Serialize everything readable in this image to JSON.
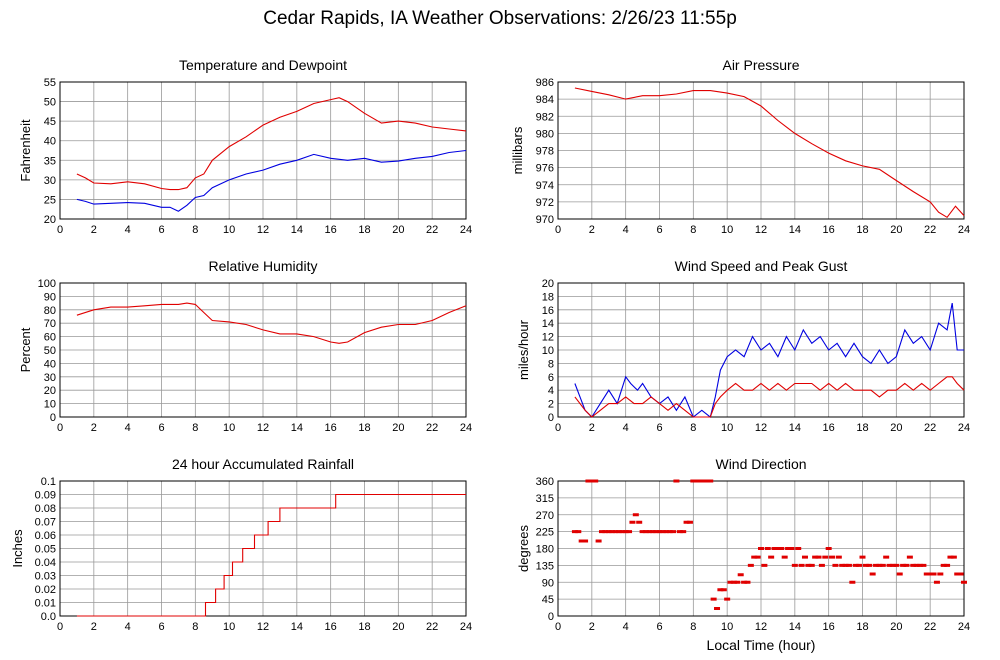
{
  "page": {
    "title": "Cedar Rapids, IA Weather Observations: 2/26/23 11:55p",
    "xlabel": "Local Time (hour)"
  },
  "colors": {
    "red": "#e00000",
    "blue": "#0000e0",
    "grid": "#999999"
  },
  "chart_data": [
    {
      "id": "temp",
      "type": "line",
      "title": "Temperature and Dewpoint",
      "ylabel": "Fahrenheit",
      "xlim": [
        0,
        24
      ],
      "ylim": [
        20,
        55
      ],
      "xticks": [
        2,
        4,
        6,
        8,
        10,
        12,
        14,
        16,
        18,
        20,
        22,
        24
      ],
      "yticks": [
        20,
        25,
        30,
        35,
        40,
        45,
        50,
        55
      ],
      "grid": true,
      "series": [
        {
          "color": "red",
          "x": [
            1,
            1.5,
            2,
            3,
            4,
            5,
            6,
            6.5,
            7,
            7.5,
            8,
            8.5,
            9,
            10,
            11,
            12,
            13,
            14,
            15,
            16,
            16.5,
            17,
            18,
            19,
            20,
            21,
            22,
            23,
            24
          ],
          "y": [
            31.5,
            30.5,
            29.2,
            29.0,
            29.5,
            29.0,
            27.8,
            27.5,
            27.5,
            28.0,
            30.5,
            31.5,
            35.0,
            38.5,
            41.0,
            44.0,
            46.0,
            47.5,
            49.5,
            50.5,
            51.0,
            50.0,
            47.0,
            44.5,
            45.0,
            44.5,
            43.5,
            43.0,
            42.5
          ]
        },
        {
          "color": "blue",
          "x": [
            1,
            1.5,
            2,
            3,
            4,
            5,
            6,
            6.5,
            7,
            7.5,
            8,
            8.5,
            9,
            10,
            11,
            12,
            13,
            14,
            15,
            16,
            17,
            18,
            19,
            20,
            21,
            22,
            23,
            24
          ],
          "y": [
            25.0,
            24.5,
            23.8,
            24.0,
            24.2,
            24.0,
            23.0,
            23.0,
            22.0,
            23.5,
            25.5,
            26.0,
            28.0,
            30.0,
            31.5,
            32.5,
            34.0,
            35.0,
            36.5,
            35.5,
            35.0,
            35.5,
            34.5,
            34.8,
            35.5,
            36.0,
            37.0,
            37.5
          ]
        }
      ]
    },
    {
      "id": "pressure",
      "type": "line",
      "title": "Air Pressure",
      "ylabel": "millibars",
      "xlim": [
        0,
        24
      ],
      "ylim": [
        970,
        986
      ],
      "xticks": [
        2,
        4,
        6,
        8,
        10,
        12,
        14,
        16,
        18,
        20,
        22,
        24
      ],
      "yticks": [
        970,
        972,
        974,
        976,
        978,
        980,
        982,
        984,
        986
      ],
      "grid": true,
      "series": [
        {
          "color": "red",
          "x": [
            1,
            2,
            3,
            4,
            5,
            6,
            7,
            8,
            9,
            10,
            11,
            12,
            13,
            14,
            15,
            16,
            17,
            18,
            19,
            20,
            21,
            22,
            22.5,
            23,
            23.5,
            24
          ],
          "y": [
            985.3,
            984.9,
            984.5,
            984.0,
            984.4,
            984.4,
            984.6,
            985.0,
            985.0,
            984.7,
            984.3,
            983.2,
            981.5,
            980.0,
            978.8,
            977.7,
            976.8,
            976.2,
            975.8,
            974.5,
            973.2,
            972.0,
            970.8,
            970.2,
            971.5,
            970.4
          ]
        }
      ]
    },
    {
      "id": "humidity",
      "type": "line",
      "title": "Relative Humidity",
      "ylabel": "Percent",
      "xlim": [
        0,
        24
      ],
      "ylim": [
        0,
        100
      ],
      "xticks": [
        2,
        4,
        6,
        8,
        10,
        12,
        14,
        16,
        18,
        20,
        22,
        24
      ],
      "yticks": [
        0,
        10,
        20,
        30,
        40,
        50,
        60,
        70,
        80,
        90,
        100
      ],
      "grid": true,
      "series": [
        {
          "color": "red",
          "x": [
            1,
            2,
            3,
            4,
            5,
            6,
            7,
            7.5,
            8,
            8.5,
            9,
            10,
            11,
            12,
            13,
            14,
            15,
            16,
            16.5,
            17,
            18,
            19,
            20,
            21,
            22,
            23,
            24
          ],
          "y": [
            76,
            80,
            82,
            82,
            83,
            84,
            84,
            85,
            84,
            78,
            72,
            71,
            69,
            65,
            62,
            62,
            60,
            56,
            55,
            56,
            63,
            67,
            69,
            69,
            72,
            78,
            83
          ]
        }
      ]
    },
    {
      "id": "wind",
      "type": "line",
      "title": "Wind Speed and Peak Gust",
      "ylabel": "miles/hour",
      "xlim": [
        0,
        24
      ],
      "ylim": [
        0,
        20
      ],
      "xticks": [
        2,
        4,
        6,
        8,
        10,
        12,
        14,
        16,
        18,
        20,
        22,
        24
      ],
      "yticks": [
        0,
        2,
        4,
        6,
        8,
        10,
        12,
        14,
        16,
        18,
        20
      ],
      "grid": true,
      "series": [
        {
          "color": "blue",
          "x": [
            1,
            1.3,
            1.6,
            2,
            2.5,
            3,
            3.5,
            4,
            4.3,
            4.7,
            5,
            5.5,
            6,
            6.5,
            7,
            7.5,
            8,
            8.5,
            9,
            9.3,
            9.6,
            10,
            10.5,
            11,
            11.5,
            12,
            12.5,
            13,
            13.5,
            14,
            14.5,
            15,
            15.5,
            16,
            16.5,
            17,
            17.5,
            18,
            18.5,
            19,
            19.5,
            20,
            20.5,
            21,
            21.5,
            22,
            22.5,
            23,
            23.3,
            23.6,
            24
          ],
          "y": [
            5,
            3,
            1,
            0,
            2,
            4,
            2,
            6,
            5,
            4,
            5,
            3,
            2,
            3,
            1,
            3,
            0,
            1,
            0,
            3,
            7,
            9,
            10,
            9,
            12,
            10,
            11,
            9,
            12,
            10,
            13,
            11,
            12,
            10,
            11,
            9,
            11,
            9,
            8,
            10,
            8,
            9,
            13,
            11,
            12,
            10,
            14,
            13,
            17,
            10,
            10
          ]
        },
        {
          "color": "red",
          "x": [
            1,
            1.3,
            1.6,
            2,
            2.5,
            3,
            3.5,
            4,
            4.5,
            5,
            5.5,
            6,
            6.5,
            7,
            7.5,
            8,
            8.5,
            9,
            9.3,
            9.6,
            10,
            10.5,
            11,
            11.5,
            12,
            12.5,
            13,
            13.5,
            14,
            14.5,
            15,
            15.5,
            16,
            16.5,
            17,
            17.5,
            18,
            18.5,
            19,
            19.5,
            20,
            20.5,
            21,
            21.5,
            22,
            22.5,
            23,
            23.3,
            23.6,
            24
          ],
          "y": [
            3,
            2,
            1,
            0,
            1,
            2,
            2,
            3,
            2,
            2,
            3,
            2,
            1,
            2,
            1,
            0,
            0,
            0,
            2,
            3,
            4,
            5,
            4,
            4,
            5,
            4,
            5,
            4,
            5,
            5,
            5,
            4,
            5,
            4,
            5,
            4,
            4,
            4,
            3,
            4,
            4,
            5,
            4,
            5,
            4,
            5,
            6,
            6,
            5,
            4
          ]
        }
      ]
    },
    {
      "id": "rain",
      "type": "line",
      "title": "24 hour Accumulated Rainfall",
      "ylabel": "Inches",
      "xlim": [
        0,
        24
      ],
      "ylim": [
        0,
        0.09
      ],
      "xticks": [
        2,
        4,
        6,
        8,
        10,
        12,
        14,
        16,
        18,
        20,
        22,
        24
      ],
      "yticks": [
        "0.0",
        "0.01",
        "0.02",
        "0.03",
        "0.04",
        "0.05",
        "0.06",
        "0.07",
        "0.08",
        "0.09",
        "0.1"
      ],
      "grid": true,
      "series": [
        {
          "color": "red",
          "step": true,
          "x": [
            1,
            8.6,
            9.2,
            9.7,
            10.2,
            10.8,
            11.5,
            12.3,
            13.0,
            13.8,
            16.3,
            24
          ],
          "y": [
            0.0,
            0.01,
            0.02,
            0.03,
            0.04,
            0.05,
            0.06,
            0.07,
            0.08,
            0.08,
            0.09,
            0.09
          ]
        }
      ]
    },
    {
      "id": "direction",
      "type": "scatter",
      "title": "Wind Direction",
      "ylabel": "degrees",
      "xlim": [
        0,
        24
      ],
      "ylim": [
        0,
        360
      ],
      "xticks": [
        2,
        4,
        6,
        8,
        10,
        12,
        14,
        16,
        18,
        20,
        22,
        24
      ],
      "yticks": [
        0,
        45,
        90,
        135,
        180,
        225,
        270,
        315,
        360
      ],
      "grid": true,
      "series": [
        {
          "color": "red",
          "x": [
            1.0,
            1.2,
            1.4,
            1.6,
            1.8,
            2.0,
            2.2,
            2.4,
            2.6,
            2.8,
            3.0,
            3.2,
            3.4,
            3.6,
            3.8,
            4.0,
            4.2,
            4.4,
            4.6,
            4.8,
            5.0,
            5.2,
            5.4,
            5.6,
            5.8,
            6.0,
            6.2,
            6.4,
            6.6,
            6.8,
            7.0,
            7.2,
            7.4,
            7.6,
            7.8,
            8.0,
            8.2,
            8.4,
            8.6,
            8.8,
            9.0,
            9.2,
            9.4,
            9.6,
            9.8,
            10.0,
            10.2,
            10.4,
            10.6,
            10.8,
            11.0,
            11.2,
            11.4,
            11.6,
            11.8,
            12.0,
            12.2,
            12.4,
            12.6,
            12.8,
            13.0,
            13.2,
            13.4,
            13.6,
            13.8,
            14.0,
            14.2,
            14.4,
            14.6,
            14.8,
            15.0,
            15.2,
            15.4,
            15.6,
            15.8,
            16.0,
            16.2,
            16.4,
            16.6,
            16.8,
            17.0,
            17.2,
            17.4,
            17.6,
            17.8,
            18.0,
            18.2,
            18.4,
            18.6,
            18.8,
            19.0,
            19.2,
            19.4,
            19.6,
            19.8,
            20.0,
            20.2,
            20.4,
            20.6,
            20.8,
            21.0,
            21.2,
            21.4,
            21.6,
            21.8,
            22.0,
            22.2,
            22.4,
            22.6,
            22.8,
            23.0,
            23.2,
            23.4,
            23.6,
            23.8,
            24.0
          ],
          "y": [
            225,
            225,
            200,
            200,
            360,
            360,
            360,
            200,
            225,
            225,
            225,
            225,
            225,
            225,
            225,
            225,
            225,
            250,
            270,
            250,
            225,
            225,
            225,
            225,
            225,
            225,
            225,
            225,
            225,
            225,
            360,
            225,
            225,
            250,
            250,
            360,
            360,
            360,
            360,
            360,
            360,
            45,
            20,
            70,
            70,
            45,
            90,
            90,
            90,
            110,
            90,
            90,
            135,
            157,
            157,
            180,
            135,
            180,
            157,
            180,
            180,
            180,
            157,
            180,
            180,
            135,
            180,
            135,
            157,
            135,
            135,
            157,
            157,
            135,
            157,
            180,
            157,
            135,
            157,
            135,
            135,
            135,
            90,
            135,
            135,
            157,
            135,
            135,
            112,
            135,
            135,
            135,
            157,
            135,
            135,
            135,
            112,
            135,
            135,
            157,
            135,
            135,
            135,
            135,
            112,
            112,
            112,
            90,
            112,
            135,
            135,
            157,
            157,
            112,
            112,
            90
          ]
        }
      ]
    }
  ]
}
